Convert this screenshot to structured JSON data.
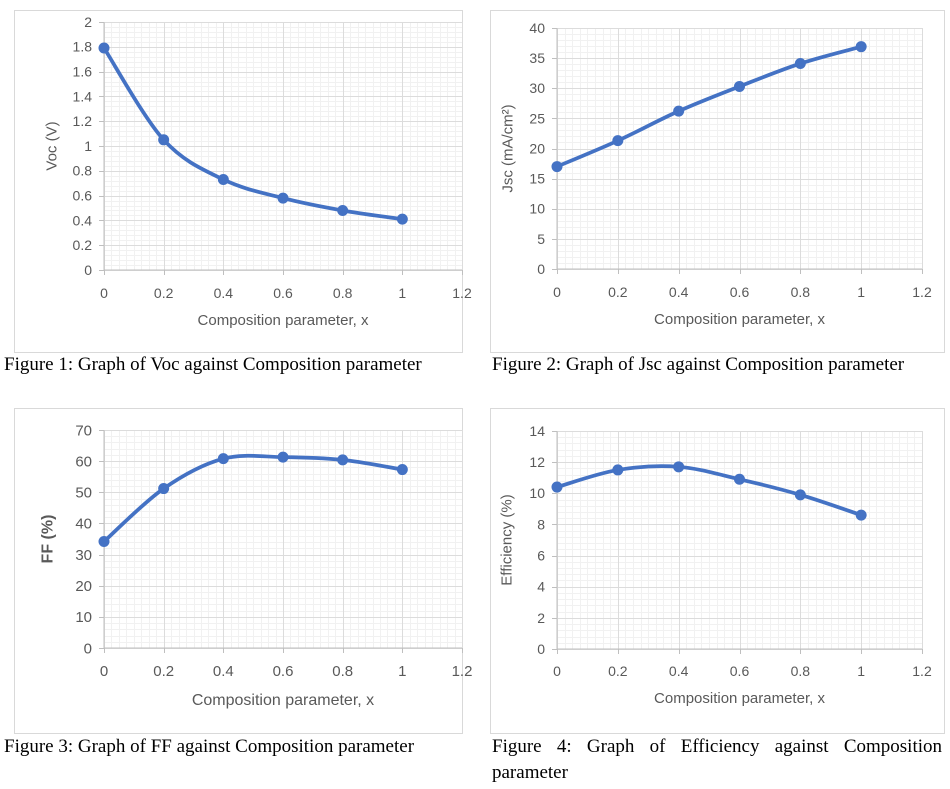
{
  "colors": {
    "line": "#4472C4",
    "tick_label": "#595959",
    "axis_line": "#BFBFBF",
    "grid_major": "#DCDCDC",
    "grid_minor": "#F1F1F1",
    "chart_border": "#D9D9D9",
    "caption_text": "#000000",
    "background": "#FFFFFF"
  },
  "chart_data": [
    {
      "type": "line",
      "figure": "Figure 1",
      "caption": "Figure 1: Graph of Voc against Composition parameter",
      "xlabel": "Composition parameter, x",
      "ylabel": "Voc (V)",
      "ylabel_bold": false,
      "x": [
        0,
        0.2,
        0.4,
        0.6,
        0.8,
        1
      ],
      "series": [
        {
          "name": "Voc",
          "values": [
            1.79,
            1.05,
            0.73,
            0.58,
            0.48,
            0.41
          ]
        }
      ],
      "xlim": [
        0,
        1.2
      ],
      "ylim": [
        0,
        2
      ],
      "x_ticks": [
        0,
        0.2,
        0.4,
        0.6,
        0.8,
        1,
        1.2
      ],
      "y_ticks": [
        0,
        0.2,
        0.4,
        0.6,
        0.8,
        1,
        1.2,
        1.4,
        1.6,
        1.8,
        2
      ],
      "grid": {
        "major": true,
        "minor": true
      },
      "legend": false,
      "smooth_line": true,
      "markers": true
    },
    {
      "type": "line",
      "figure": "Figure 2",
      "caption": "Figure 2: Graph of Jsc against Composition parameter",
      "xlabel": "Composition parameter, x",
      "ylabel": "Jsc (mA/cm²)",
      "ylabel_bold": false,
      "x": [
        0,
        0.2,
        0.4,
        0.6,
        0.8,
        1
      ],
      "series": [
        {
          "name": "Jsc",
          "values": [
            17,
            21.3,
            26.2,
            30.3,
            34.1,
            36.9
          ]
        }
      ],
      "xlim": [
        0,
        1.2
      ],
      "ylim": [
        0,
        40
      ],
      "x_ticks": [
        0,
        0.2,
        0.4,
        0.6,
        0.8,
        1,
        1.2
      ],
      "y_ticks": [
        0,
        5,
        10,
        15,
        20,
        25,
        30,
        35,
        40
      ],
      "grid": {
        "major": true,
        "minor": true
      },
      "legend": false,
      "smooth_line": true,
      "markers": true
    },
    {
      "type": "line",
      "figure": "Figure 3",
      "caption": "Figure 3: Graph of FF against Composition parameter",
      "xlabel": "Composition parameter, x",
      "ylabel": "FF (%)",
      "ylabel_bold": true,
      "x": [
        0,
        0.2,
        0.4,
        0.6,
        0.8,
        1
      ],
      "series": [
        {
          "name": "FF",
          "values": [
            34.2,
            51.2,
            60.8,
            61.3,
            60.4,
            57.3
          ]
        }
      ],
      "xlim": [
        0,
        1.2
      ],
      "ylim": [
        0,
        70
      ],
      "x_ticks": [
        0,
        0.2,
        0.4,
        0.6,
        0.8,
        1,
        1.2
      ],
      "y_ticks": [
        0,
        10,
        20,
        30,
        40,
        50,
        60,
        70
      ],
      "grid": {
        "major": true,
        "minor": true
      },
      "legend": false,
      "smooth_line": true,
      "markers": true
    },
    {
      "type": "line",
      "figure": "Figure 4",
      "caption": "Figure 4: Graph of Efficiency against Composition parameter",
      "xlabel": "Composition parameter, x",
      "ylabel": "Efficiency (%)",
      "ylabel_bold": false,
      "x": [
        0,
        0.2,
        0.4,
        0.6,
        0.8,
        1
      ],
      "series": [
        {
          "name": "Efficiency",
          "values": [
            10.4,
            11.5,
            11.7,
            10.9,
            9.9,
            8.6
          ]
        }
      ],
      "xlim": [
        0,
        1.2
      ],
      "ylim": [
        0,
        14
      ],
      "x_ticks": [
        0,
        0.2,
        0.4,
        0.6,
        0.8,
        1,
        1.2
      ],
      "y_ticks": [
        0,
        2,
        4,
        6,
        8,
        10,
        12,
        14
      ],
      "grid": {
        "major": true,
        "minor": true
      },
      "legend": false,
      "smooth_line": true,
      "markers": true
    }
  ]
}
